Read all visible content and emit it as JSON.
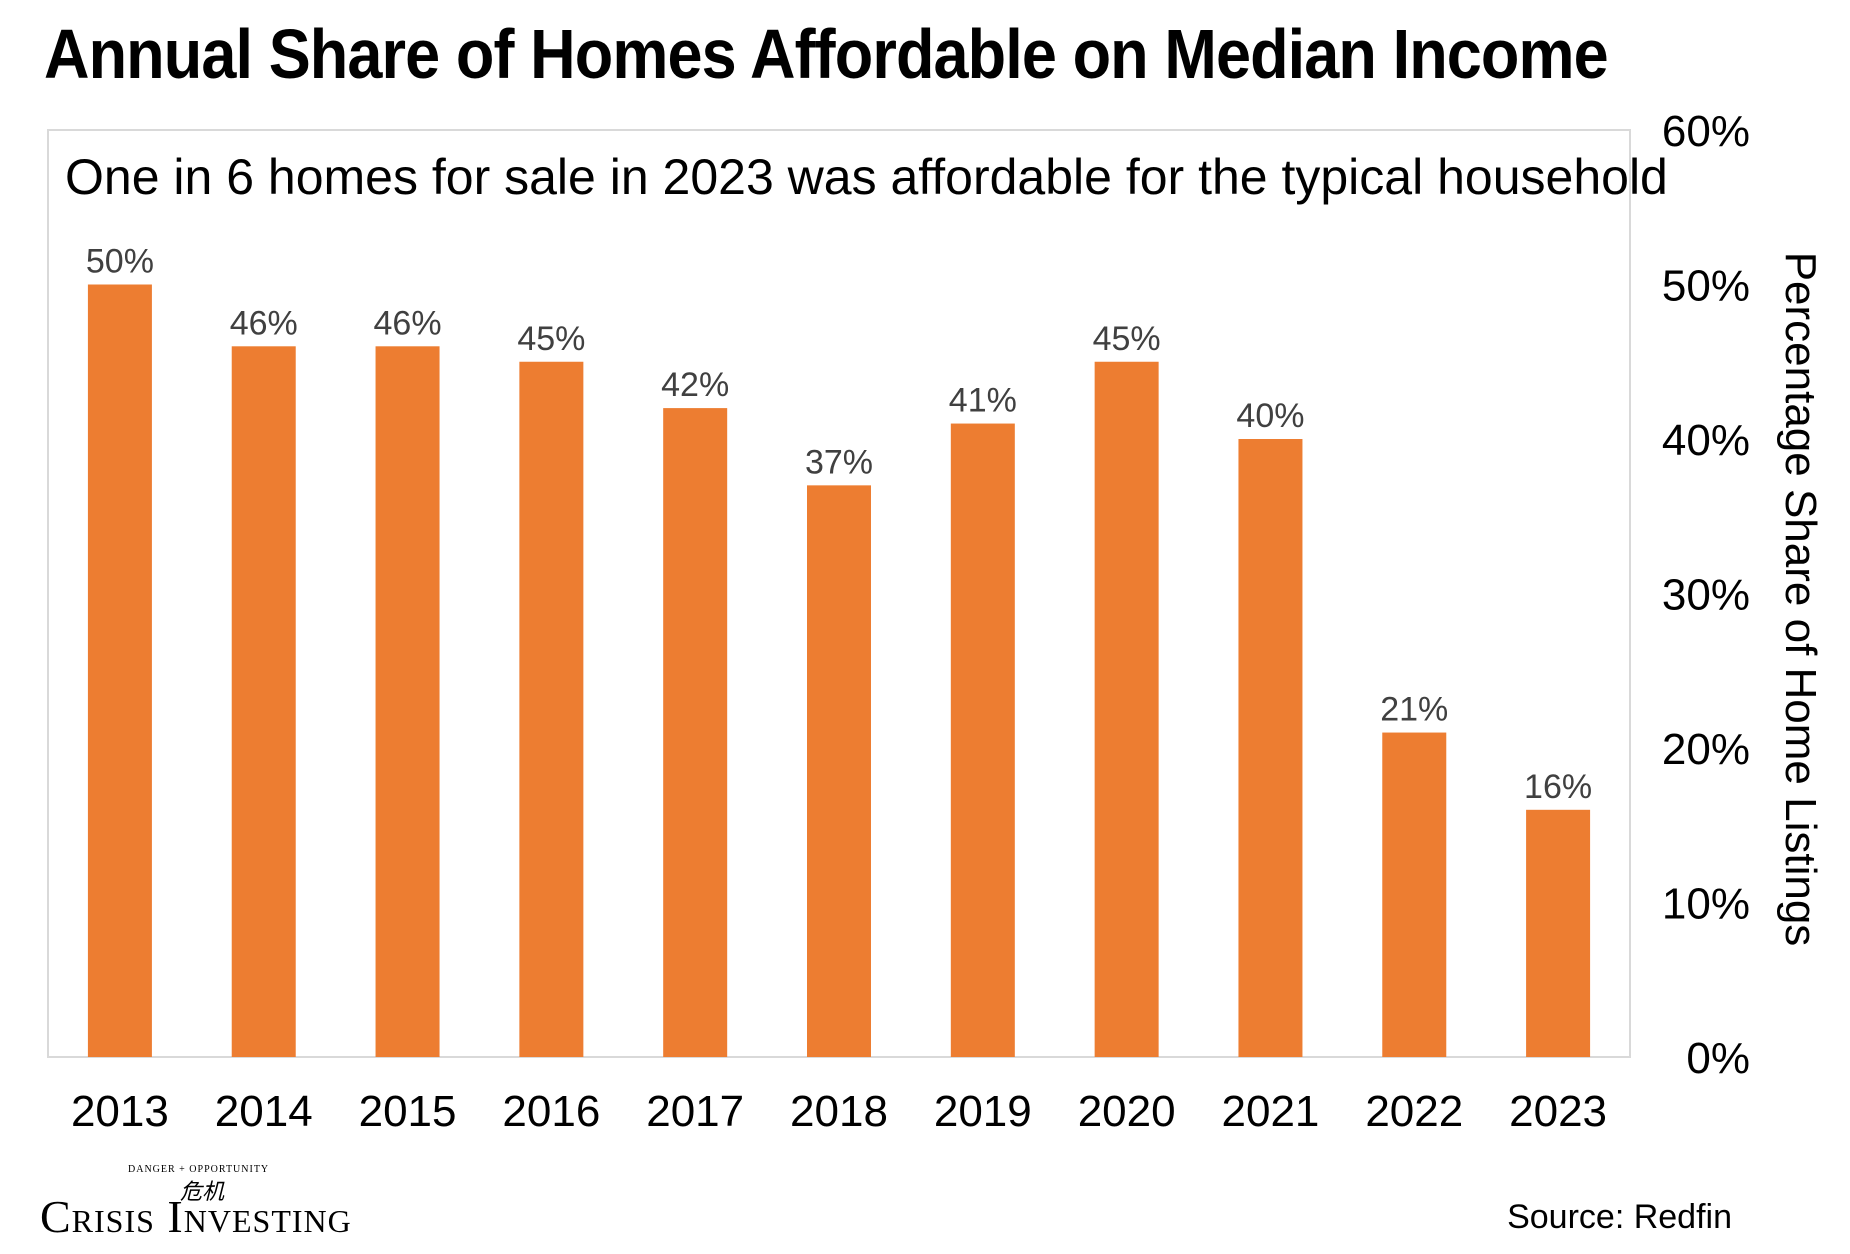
{
  "title": "Annual Share of Homes Affordable on Median Income",
  "source": "Source: Redfin",
  "logo": {
    "text": "Crisis Investing",
    "tagline": "DANGER + OPPORTUNITY",
    "glyph": "危机"
  },
  "colors": {
    "bar": "#ED7D31",
    "label": "#404040",
    "frame": "#D9D9D9"
  },
  "chart_data": {
    "type": "bar",
    "subtitle": "One in 6 homes for sale in 2023 was affordable for the typical household",
    "categories": [
      "2013",
      "2014",
      "2015",
      "2016",
      "2017",
      "2018",
      "2019",
      "2020",
      "2021",
      "2022",
      "2023"
    ],
    "values": [
      50,
      46,
      46,
      45,
      42,
      37,
      41,
      45,
      40,
      21,
      16
    ],
    "value_labels": [
      "50%",
      "46%",
      "46%",
      "45%",
      "42%",
      "37%",
      "41%",
      "45%",
      "40%",
      "21%",
      "16%"
    ],
    "ylabel": "Percentage Share of Home Listings",
    "ylim": [
      0,
      60
    ],
    "y_ticks": [
      "0%",
      "10%",
      "20%",
      "30%",
      "40%",
      "50%",
      "60%"
    ],
    "y_axis_side": "right",
    "grid": false,
    "legend": "none"
  }
}
